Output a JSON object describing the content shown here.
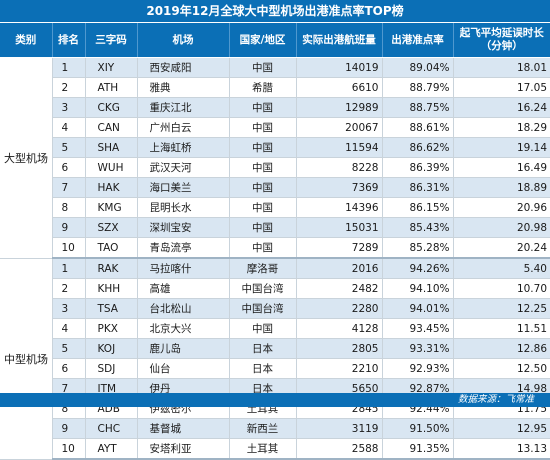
{
  "title": "2019年12月全球大中型机场出港准点率TOP榜",
  "headers": {
    "category": "类别",
    "rank": "排名",
    "code": "三字码",
    "airport": "机场",
    "region": "国家/地区",
    "flights": "实际出港航班量",
    "ontime": "出港准点率",
    "delay": "起飞平均延误时长（分钟）"
  },
  "groups": [
    {
      "category": "大型机场",
      "rows": [
        {
          "rank": "1",
          "code": "XIY",
          "airport": "西安咸阳",
          "region": "中国",
          "flights": "14019",
          "ontime": "89.04%",
          "delay": "18.01"
        },
        {
          "rank": "2",
          "code": "ATH",
          "airport": "雅典",
          "region": "希腊",
          "flights": "6610",
          "ontime": "88.79%",
          "delay": "17.05"
        },
        {
          "rank": "3",
          "code": "CKG",
          "airport": "重庆江北",
          "region": "中国",
          "flights": "12989",
          "ontime": "88.75%",
          "delay": "16.24"
        },
        {
          "rank": "4",
          "code": "CAN",
          "airport": "广州白云",
          "region": "中国",
          "flights": "20067",
          "ontime": "88.61%",
          "delay": "18.29"
        },
        {
          "rank": "5",
          "code": "SHA",
          "airport": "上海虹桥",
          "region": "中国",
          "flights": "11594",
          "ontime": "86.62%",
          "delay": "19.14"
        },
        {
          "rank": "6",
          "code": "WUH",
          "airport": "武汉天河",
          "region": "中国",
          "flights": "8228",
          "ontime": "86.39%",
          "delay": "16.49"
        },
        {
          "rank": "7",
          "code": "HAK",
          "airport": "海口美兰",
          "region": "中国",
          "flights": "7369",
          "ontime": "86.31%",
          "delay": "18.89"
        },
        {
          "rank": "8",
          "code": "KMG",
          "airport": "昆明长水",
          "region": "中国",
          "flights": "14396",
          "ontime": "86.15%",
          "delay": "20.96"
        },
        {
          "rank": "9",
          "code": "SZX",
          "airport": "深圳宝安",
          "region": "中国",
          "flights": "15031",
          "ontime": "85.43%",
          "delay": "20.98"
        },
        {
          "rank": "10",
          "code": "TAO",
          "airport": "青岛流亭",
          "region": "中国",
          "flights": "7289",
          "ontime": "85.28%",
          "delay": "20.24"
        }
      ]
    },
    {
      "category": "中型机场",
      "rows": [
        {
          "rank": "1",
          "code": "RAK",
          "airport": "马拉喀什",
          "region": "摩洛哥",
          "flights": "2016",
          "ontime": "94.26%",
          "delay": "5.40"
        },
        {
          "rank": "2",
          "code": "KHH",
          "airport": "高雄",
          "region": "中国台湾",
          "flights": "2482",
          "ontime": "94.10%",
          "delay": "10.70"
        },
        {
          "rank": "3",
          "code": "TSA",
          "airport": "台北松山",
          "region": "中国台湾",
          "flights": "2280",
          "ontime": "94.01%",
          "delay": "12.25"
        },
        {
          "rank": "4",
          "code": "PKX",
          "airport": "北京大兴",
          "region": "中国",
          "flights": "4128",
          "ontime": "93.45%",
          "delay": "11.51"
        },
        {
          "rank": "5",
          "code": "KOJ",
          "airport": "鹿儿岛",
          "region": "日本",
          "flights": "2805",
          "ontime": "93.31%",
          "delay": "12.86"
        },
        {
          "rank": "6",
          "code": "SDJ",
          "airport": "仙台",
          "region": "日本",
          "flights": "2210",
          "ontime": "92.93%",
          "delay": "12.50"
        },
        {
          "rank": "7",
          "code": "ITM",
          "airport": "伊丹",
          "region": "日本",
          "flights": "5650",
          "ontime": "92.87%",
          "delay": "14.98"
        },
        {
          "rank": "8",
          "code": "ADB",
          "airport": "伊兹密尔",
          "region": "土耳其",
          "flights": "2845",
          "ontime": "92.44%",
          "delay": "11.75"
        },
        {
          "rank": "9",
          "code": "CHC",
          "airport": "基督城",
          "region": "新西兰",
          "flights": "3119",
          "ontime": "91.50%",
          "delay": "12.95"
        },
        {
          "rank": "10",
          "code": "AYT",
          "airport": "安塔利亚",
          "region": "土耳其",
          "flights": "2588",
          "ontime": "91.35%",
          "delay": "13.13"
        }
      ]
    }
  ],
  "footer": "数据来源：飞常准",
  "colors": {
    "header": "#0b6fb6",
    "stripe": "#d9e6f2",
    "text": "#1a1a1a"
  }
}
